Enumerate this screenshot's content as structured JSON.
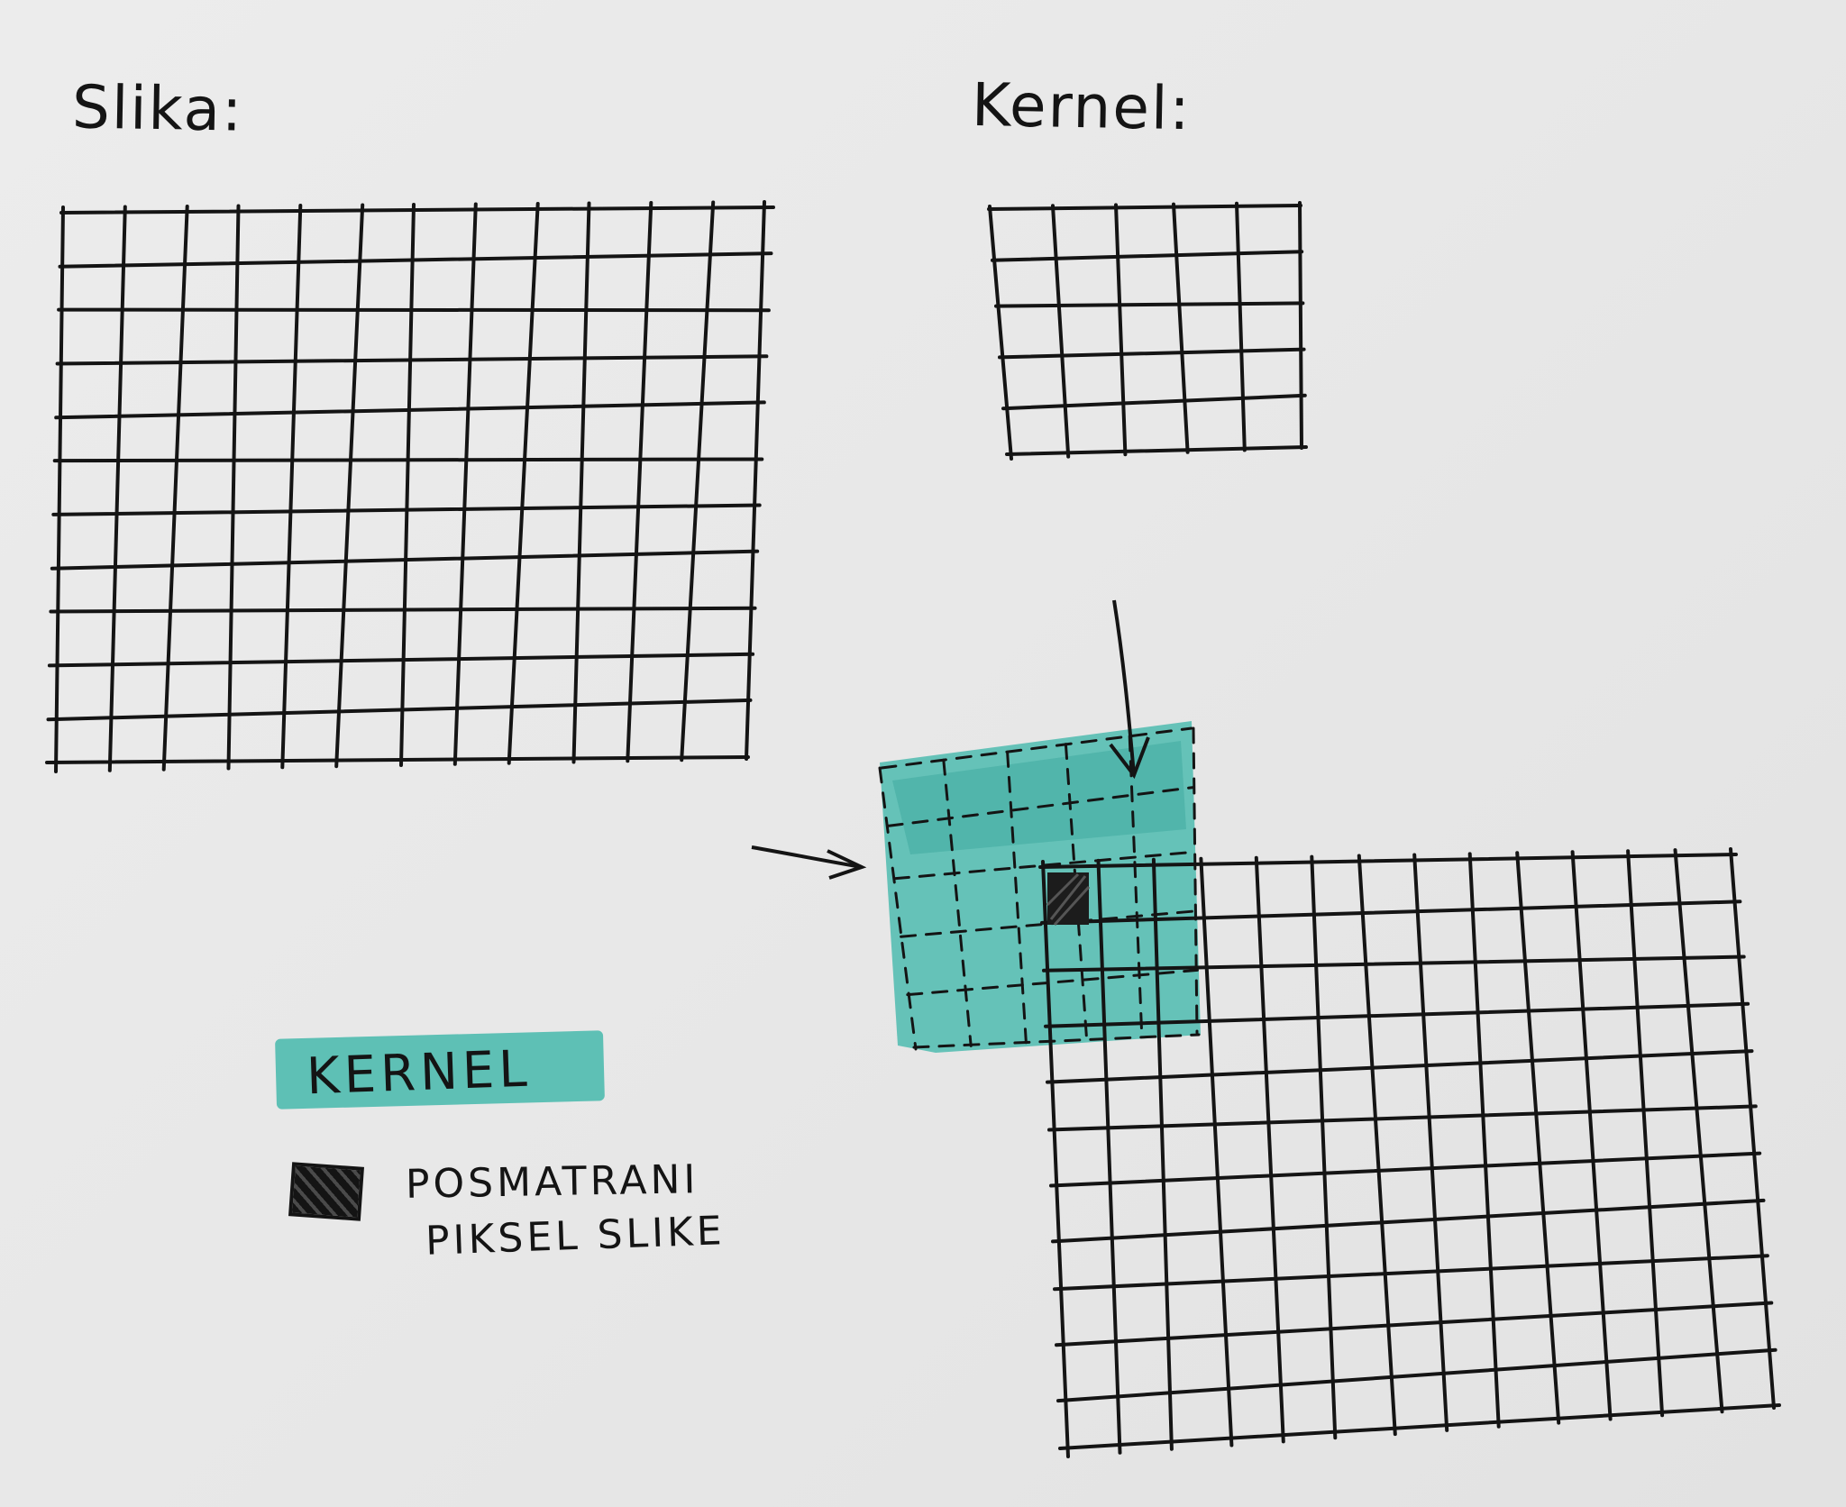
{
  "labels": {
    "image_title": "Slika:",
    "kernel_title": "Kernel:"
  },
  "legend": {
    "kernel_label": "KERNEL",
    "pixel_label_line1": "POSMATRANI",
    "pixel_label_line2": "PIKSEL SLIKE"
  },
  "colors": {
    "paper": "#e9e9e9",
    "ink": "#141414",
    "highlighter": "#40b7aa"
  },
  "grids": {
    "image_grid": {
      "columns": 12,
      "rows": 11
    },
    "kernel_grid": {
      "columns": 5,
      "rows": 5
    },
    "padded_image_grid": {
      "columns": 13,
      "rows": 11
    },
    "kernel_overlay": {
      "columns": 5,
      "rows": 5
    }
  }
}
